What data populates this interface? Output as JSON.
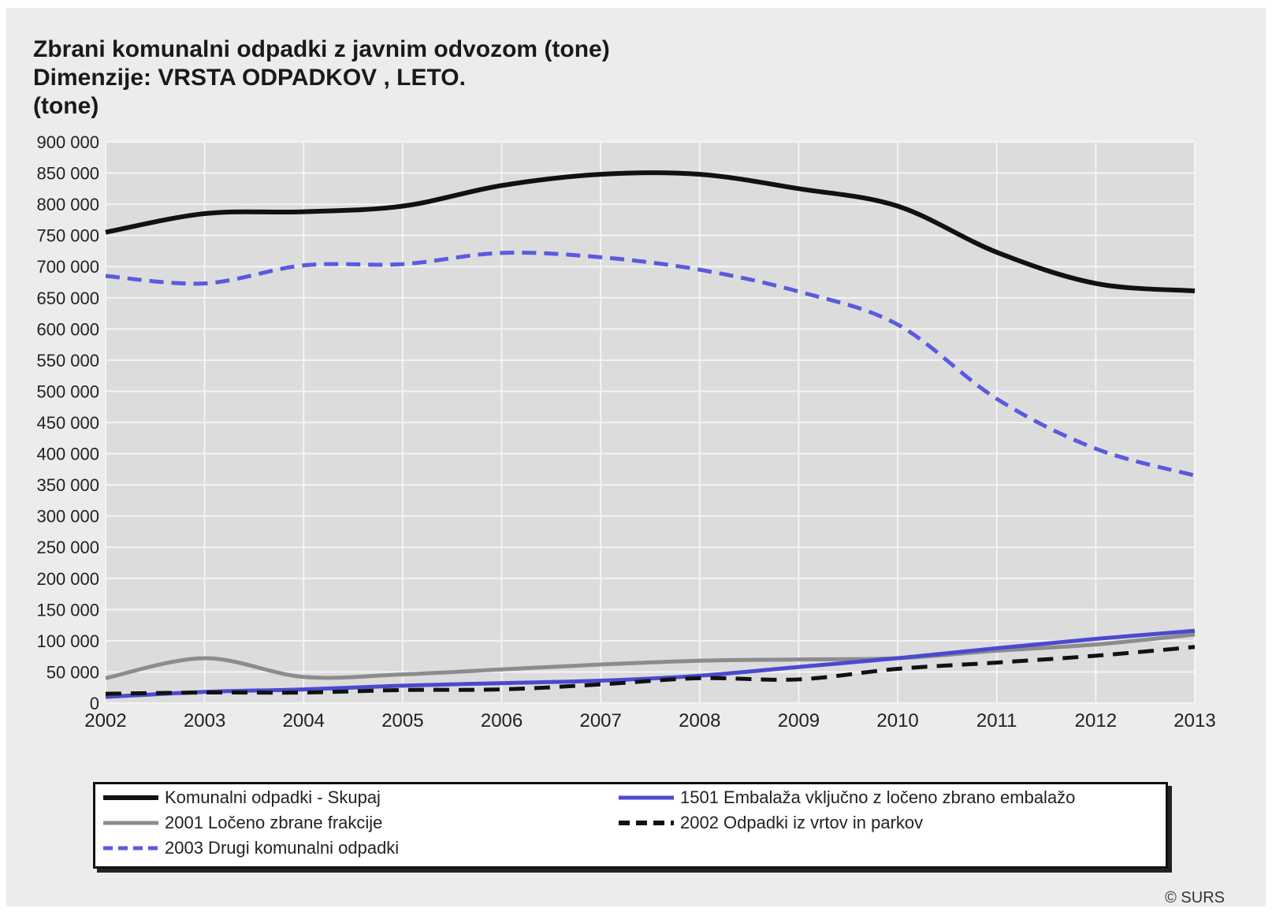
{
  "chart_data": {
    "type": "line",
    "title": "Zbrani komunalni odpadki z javnim odvozom (tone)",
    "subtitle": "Dimenzije: VRSTA ODPADKOV , LETO.",
    "ylabel": "(tone)",
    "x": [
      "2002",
      "2003",
      "2004",
      "2005",
      "2006",
      "2007",
      "2008",
      "2009",
      "2010",
      "2011",
      "2012",
      "2013"
    ],
    "ylim": [
      0,
      900000
    ],
    "yticks": [
      "0",
      "50 000",
      "100 000",
      "150 000",
      "200 000",
      "250 000",
      "300 000",
      "350 000",
      "400 000",
      "450 000",
      "500 000",
      "550 000",
      "600 000",
      "650 000",
      "700 000",
      "750 000",
      "800 000",
      "850 000",
      "900 000"
    ],
    "ytick_values": [
      0,
      50000,
      100000,
      150000,
      200000,
      250000,
      300000,
      350000,
      400000,
      450000,
      500000,
      550000,
      600000,
      650000,
      700000,
      750000,
      800000,
      850000,
      900000
    ],
    "grid": true,
    "legend_position": "bottom",
    "series": [
      {
        "name": "Komunalni odpadki - Skupaj",
        "color": "#111111",
        "dash": "solid",
        "values": [
          755000,
          785000,
          788000,
          797000,
          830000,
          848000,
          848000,
          825000,
          797000,
          723000,
          673000,
          661000
        ]
      },
      {
        "name": "1501 Embalaža vključno z ločeno zbrano embalažo",
        "color": "#4a4acf",
        "dash": "solid",
        "values": [
          10000,
          18000,
          22000,
          28000,
          32000,
          36000,
          44000,
          58000,
          72000,
          88000,
          103000,
          116000
        ]
      },
      {
        "name": "2001 Ločeno zbrane frakcije",
        "color": "#8c8c8c",
        "dash": "solid",
        "values": [
          40000,
          72000,
          42000,
          46000,
          54000,
          62000,
          68000,
          70000,
          72000,
          84000,
          94000,
          110000
        ]
      },
      {
        "name": "2002 Odpadki iz vrtov in parkov",
        "color": "#111111",
        "dash": "dashed",
        "values": [
          15000,
          17000,
          17000,
          21000,
          22000,
          30000,
          40000,
          38000,
          55000,
          65000,
          76000,
          90000
        ]
      },
      {
        "name": "2003 Drugi komunalni odpadki",
        "color": "#5a5ae0",
        "dash": "dashed",
        "values": [
          685000,
          673000,
          702000,
          704000,
          722000,
          715000,
          695000,
          660000,
          607000,
          488000,
          408000,
          365000
        ]
      }
    ]
  },
  "legend": {
    "items": [
      {
        "label": "Komunalni odpadki - Skupaj"
      },
      {
        "label": "1501 Embalaža vključno z ločeno zbrano embalažo"
      },
      {
        "label": "2001 Ločeno zbrane frakcije"
      },
      {
        "label": "2002 Odpadki iz vrtov in parkov"
      },
      {
        "label": "2003 Drugi komunalni odpadki"
      }
    ]
  },
  "footer": {
    "copyright": "© SURS"
  },
  "colors": {
    "plot_background": "#dcdcdc",
    "grid": "#f4f4f4",
    "frame_background": "#ececec"
  }
}
